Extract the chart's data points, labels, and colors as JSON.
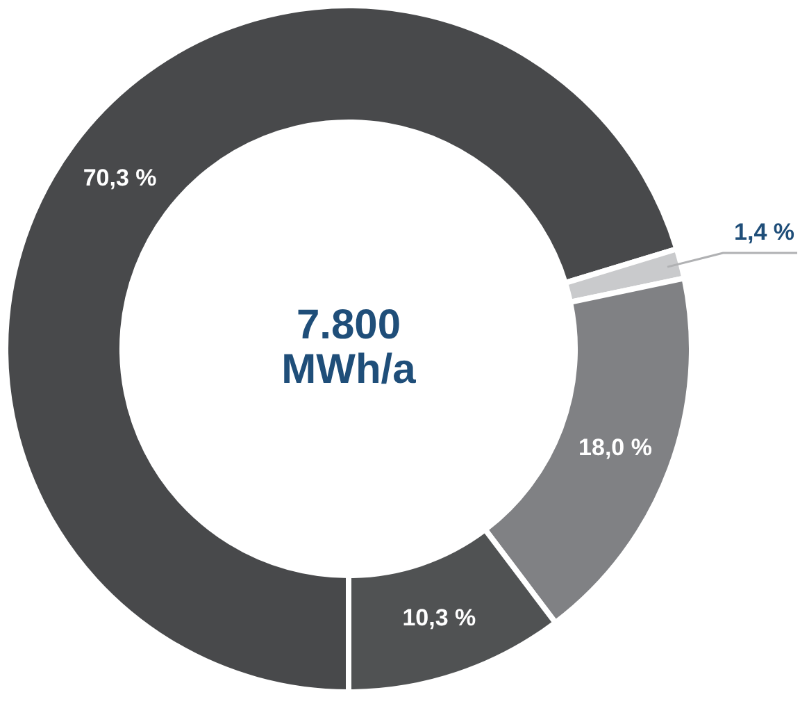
{
  "chart_data": {
    "type": "donut",
    "categories": [
      null,
      null,
      null,
      null
    ],
    "values": [
      70.3,
      1.4,
      18.0,
      10.3
    ],
    "colors": [
      "#48494b",
      "#c9cacc",
      "#808184",
      "#505253"
    ],
    "value_labels": [
      "70,3 %",
      "1,4 %",
      "18,0 %",
      "10,3 %"
    ],
    "annotations": [
      "7.800",
      "MWh/a"
    ],
    "legend": false
  }
}
